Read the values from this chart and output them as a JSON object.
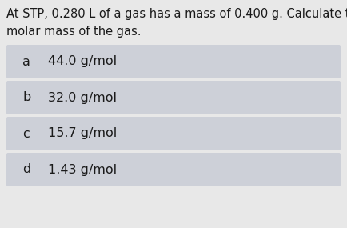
{
  "question_line1": "At STP, 0.280 L of a gas has a mass of 0.400 g. Calculate the",
  "question_line2": "molar mass of the gas.",
  "options": [
    {
      "label": "a",
      "text": "44.0 g/mol"
    },
    {
      "label": "b",
      "text": "32.0 g/mol"
    },
    {
      "label": "c",
      "text": "15.7 g/mol"
    },
    {
      "label": "d",
      "text": "1.43 g/mol"
    }
  ],
  "bg_color": "#e8e8e8",
  "option_box_color": "#cdd0d8",
  "text_color": "#1a1a1a",
  "font_size_question": 10.5,
  "font_size_options": 11.5,
  "fig_width": 4.34,
  "fig_height": 2.85,
  "dpi": 100
}
